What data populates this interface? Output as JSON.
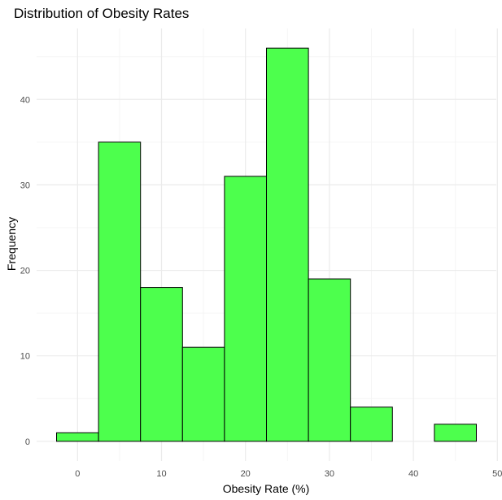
{
  "chart_data": {
    "type": "bar",
    "subtype": "histogram",
    "title": "Distribution of Obesity Rates",
    "xlabel": "Obesity Rate (%)",
    "ylabel": "Frequency",
    "bin_width": 5,
    "bins": [
      {
        "x_start": -2.5,
        "x_end": 2.5,
        "count": 1
      },
      {
        "x_start": 2.5,
        "x_end": 7.5,
        "count": 35
      },
      {
        "x_start": 7.5,
        "x_end": 12.5,
        "count": 18
      },
      {
        "x_start": 12.5,
        "x_end": 17.5,
        "count": 11
      },
      {
        "x_start": 17.5,
        "x_end": 22.5,
        "count": 31
      },
      {
        "x_start": 22.5,
        "x_end": 27.5,
        "count": 46
      },
      {
        "x_start": 27.5,
        "x_end": 32.5,
        "count": 19
      },
      {
        "x_start": 32.5,
        "x_end": 37.5,
        "count": 4
      },
      {
        "x_start": 37.5,
        "x_end": 42.5,
        "count": 0
      },
      {
        "x_start": 42.5,
        "x_end": 47.5,
        "count": 2
      }
    ],
    "xlim": [
      -4.875,
      49.875
    ],
    "ylim": [
      -2.3,
      48.3
    ],
    "xticks": [
      0,
      10,
      20,
      30,
      40,
      50
    ],
    "yticks": [
      0,
      10,
      20,
      30,
      40
    ],
    "grid": true,
    "legend": "none",
    "colors": {
      "bar_fill": "#4dff4d",
      "bar_stroke": "#000000",
      "grid_major": "#ebebeb",
      "grid_minor": "#f5f5f5",
      "background": "#ffffff"
    }
  }
}
